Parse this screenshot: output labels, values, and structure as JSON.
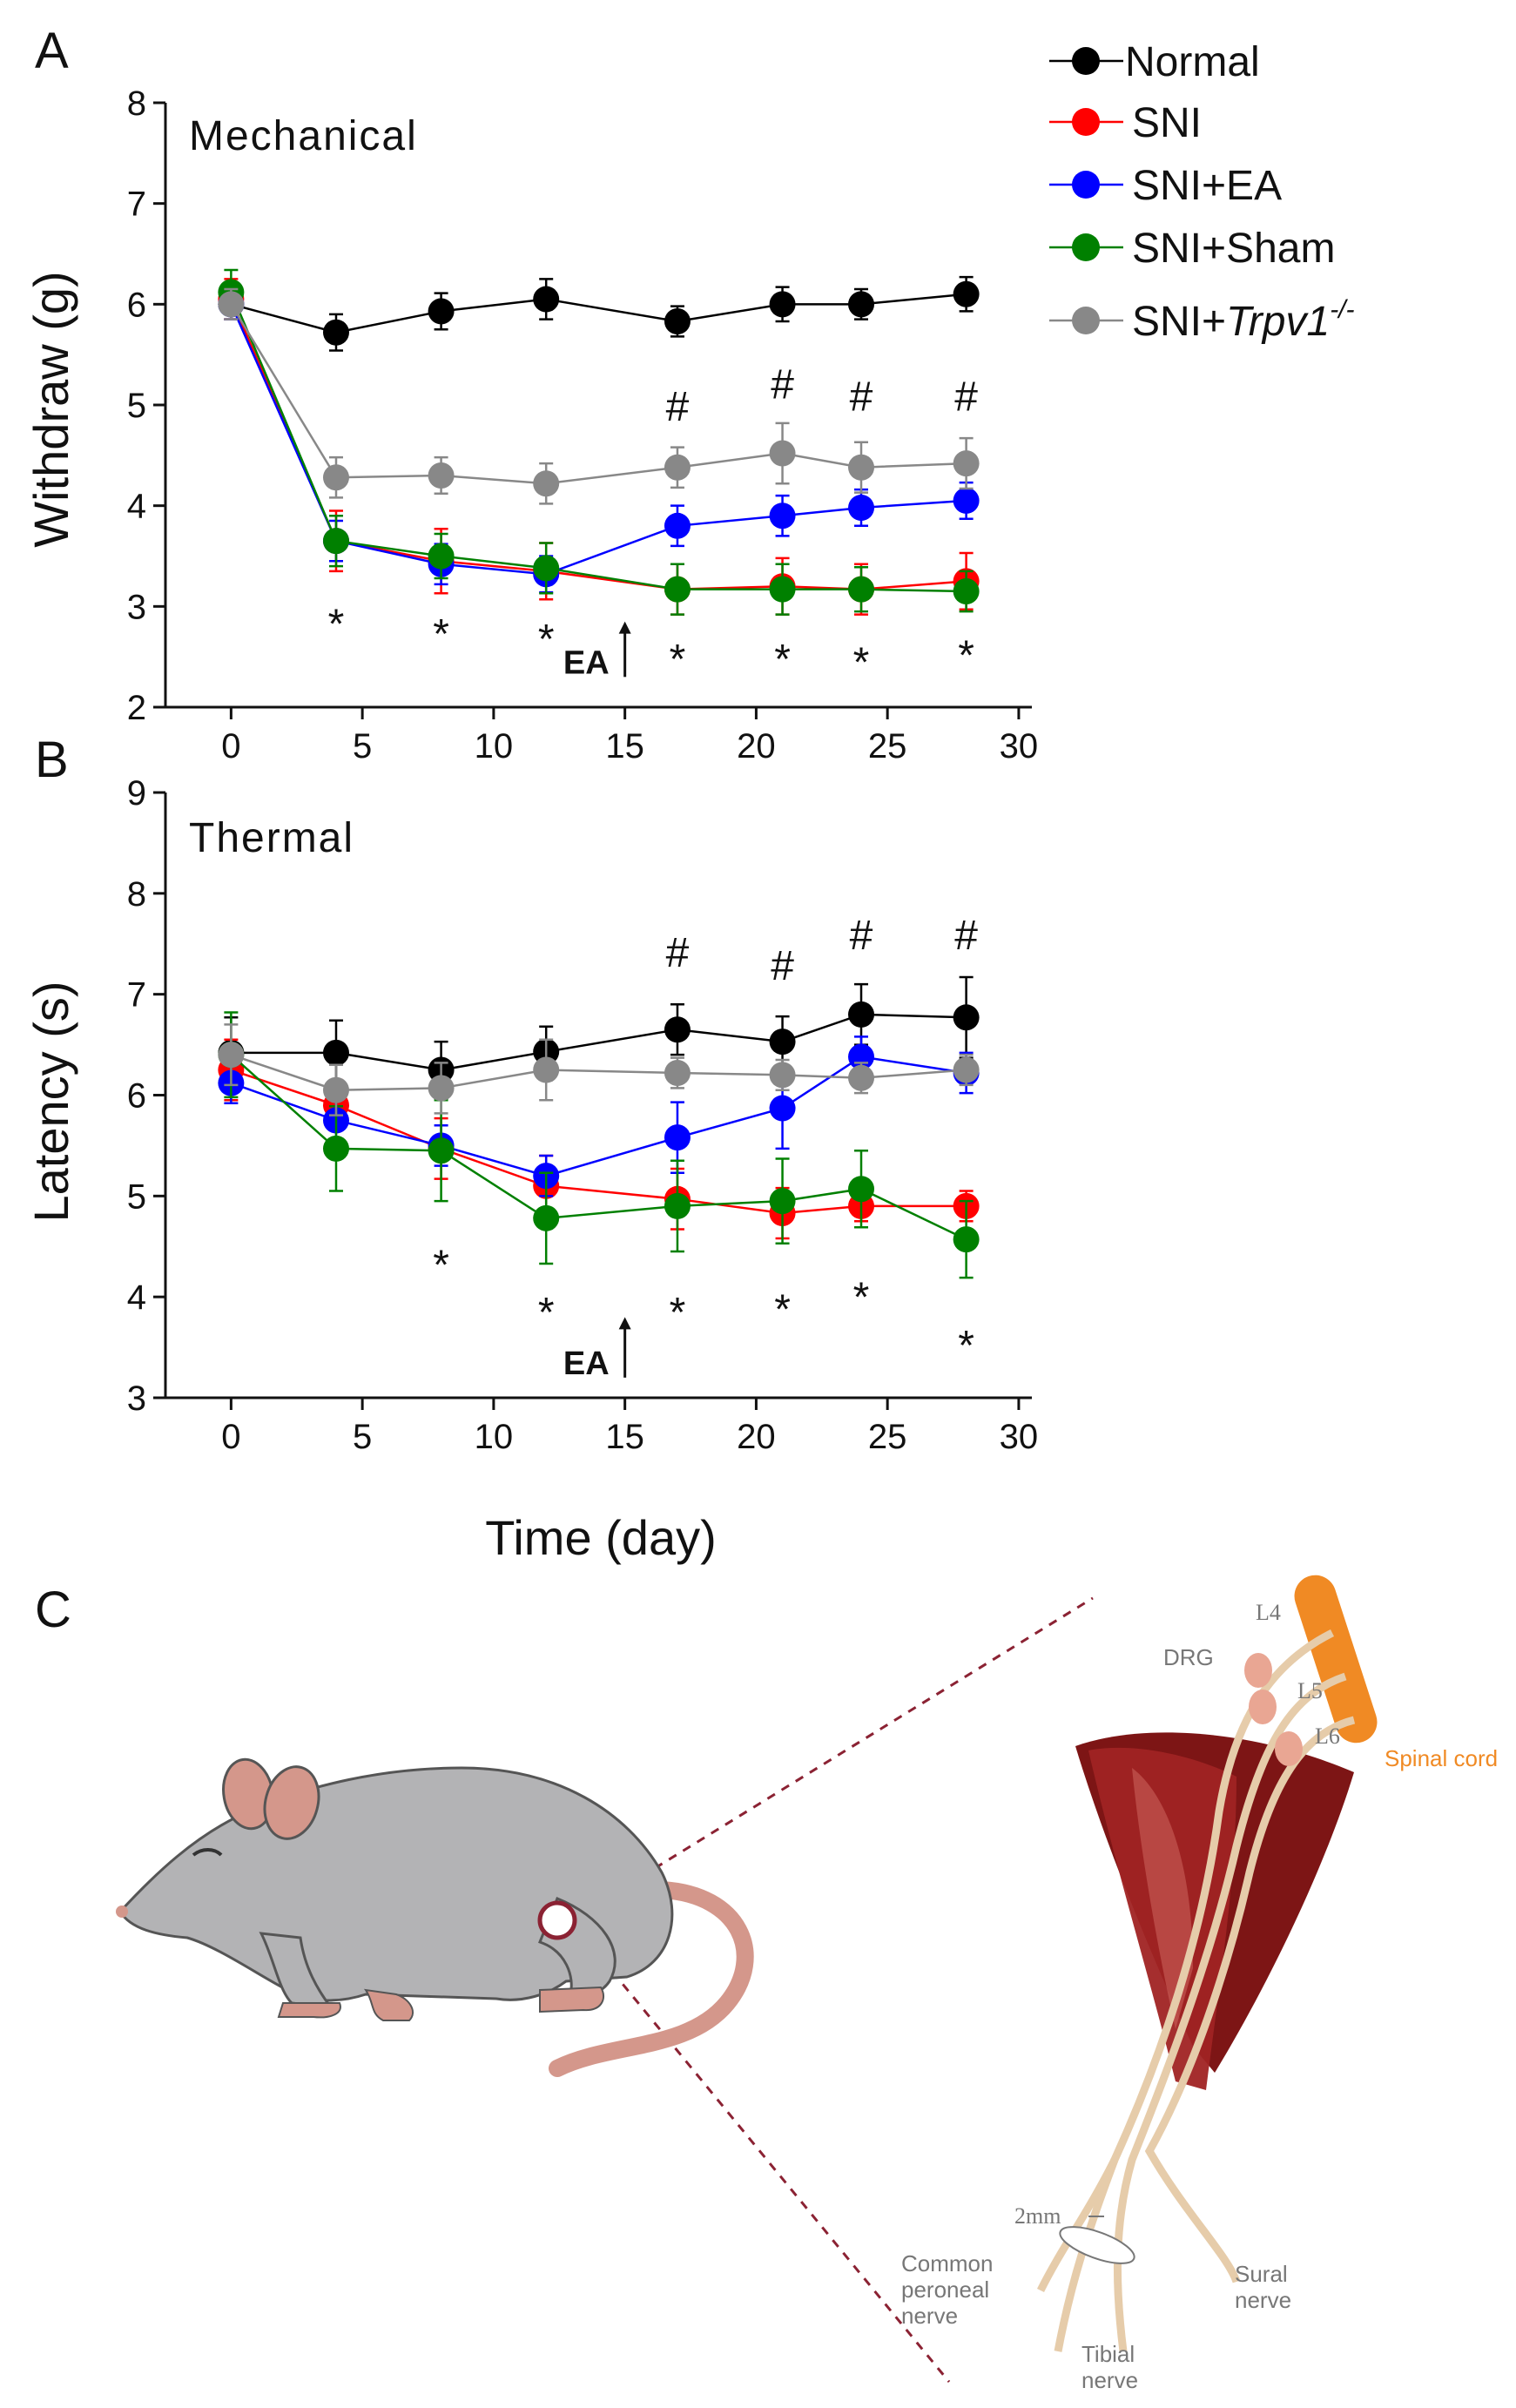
{
  "panels": {
    "a": "A",
    "b": "B",
    "c": "C"
  },
  "legend": [
    {
      "label": "Normal",
      "color": "#000000",
      "italic_suffix": "",
      "superscript": ""
    },
    {
      "label": "SNI",
      "color": "#ff0000",
      "italic_suffix": "",
      "superscript": ""
    },
    {
      "label": "SNI+EA",
      "color": "#0000ff",
      "italic_suffix": "",
      "superscript": ""
    },
    {
      "label": "SNI+Sham",
      "color": "#008000",
      "italic_suffix": "",
      "superscript": ""
    },
    {
      "label": "SNI+",
      "color": "#888888",
      "italic_suffix": "Trpv1",
      "superscript": "-/-"
    }
  ],
  "xlabel": "Time (day)",
  "ea_marker": "EA",
  "star": "*",
  "hash": "#",
  "chart_data": [
    {
      "type": "line",
      "subtitle": "Mechanical",
      "ylabel": "Withdraw (g)",
      "ylim": [
        2,
        8
      ],
      "xlim": [
        -2.5,
        30.5
      ],
      "xticks": [
        0,
        5,
        10,
        15,
        20,
        25,
        30
      ],
      "yticks": [
        2,
        3,
        4,
        5,
        6,
        7,
        8
      ],
      "x": [
        0,
        4,
        8,
        12,
        17,
        21,
        24,
        28
      ],
      "ea_day": 15,
      "series": [
        {
          "name": "Normal",
          "color": "#000000",
          "values": [
            6.0,
            5.72,
            5.93,
            6.05,
            5.83,
            6.0,
            6.0,
            6.1
          ],
          "err": [
            0.15,
            0.18,
            0.18,
            0.2,
            0.15,
            0.17,
            0.15,
            0.17
          ]
        },
        {
          "name": "SNI",
          "color": "#ff0000",
          "values": [
            6.05,
            3.65,
            3.45,
            3.35,
            3.17,
            3.2,
            3.17,
            3.25
          ],
          "err": [
            0.2,
            0.3,
            0.32,
            0.28,
            0.25,
            0.28,
            0.25,
            0.28
          ]
        },
        {
          "name": "SNI+EA",
          "color": "#0000ff",
          "values": [
            6.0,
            3.65,
            3.42,
            3.32,
            3.8,
            3.9,
            3.98,
            4.05
          ],
          "err": [
            0.15,
            0.2,
            0.2,
            0.18,
            0.2,
            0.2,
            0.18,
            0.18
          ]
        },
        {
          "name": "SNI+Sham",
          "color": "#008000",
          "values": [
            6.12,
            3.65,
            3.5,
            3.38,
            3.17,
            3.17,
            3.17,
            3.15
          ],
          "err": [
            0.22,
            0.25,
            0.22,
            0.25,
            0.25,
            0.25,
            0.22,
            0.2
          ]
        },
        {
          "name": "SNI+Trpv1-/-",
          "color": "#888888",
          "values": [
            6.0,
            4.28,
            4.3,
            4.22,
            4.38,
            4.52,
            4.38,
            4.42
          ],
          "err": [
            0.15,
            0.2,
            0.18,
            0.2,
            0.2,
            0.3,
            0.25,
            0.25
          ]
        }
      ],
      "star_marks": [
        {
          "x": 4,
          "y": 2.93
        },
        {
          "x": 8,
          "y": 2.83
        },
        {
          "x": 12,
          "y": 2.78
        },
        {
          "x": 17,
          "y": 2.58
        },
        {
          "x": 21,
          "y": 2.58
        },
        {
          "x": 24,
          "y": 2.55
        },
        {
          "x": 28,
          "y": 2.62
        }
      ],
      "hash_marks": [
        {
          "x": 17,
          "y": 5.0
        },
        {
          "x": 21,
          "y": 5.22
        },
        {
          "x": 24,
          "y": 5.1
        },
        {
          "x": 28,
          "y": 5.1
        }
      ],
      "ea_arrow": {
        "y_from": 2.3,
        "y_to": 2.85
      },
      "legend_position": "top-right"
    },
    {
      "type": "line",
      "subtitle": "Thermal",
      "ylabel": "Latency (s)",
      "ylim": [
        3,
        9
      ],
      "xlim": [
        -2.5,
        30.5
      ],
      "xticks": [
        0,
        5,
        10,
        15,
        20,
        25,
        30
      ],
      "yticks": [
        3,
        4,
        5,
        6,
        7,
        8,
        9
      ],
      "x": [
        0,
        4,
        8,
        12,
        17,
        21,
        24,
        28
      ],
      "ea_day": 15,
      "series": [
        {
          "name": "Normal",
          "color": "#000000",
          "values": [
            6.42,
            6.42,
            6.25,
            6.43,
            6.65,
            6.53,
            6.8,
            6.77
          ],
          "err": [
            0.35,
            0.32,
            0.28,
            0.25,
            0.25,
            0.25,
            0.3,
            0.4
          ]
        },
        {
          "name": "SNI",
          "color": "#ff0000",
          "values": [
            6.25,
            5.9,
            5.47,
            5.1,
            4.97,
            4.83,
            4.9,
            4.9
          ],
          "err": [
            0.3,
            0.25,
            0.3,
            0.3,
            0.3,
            0.25,
            0.15,
            0.15
          ]
        },
        {
          "name": "SNI+EA",
          "color": "#0000ff",
          "values": [
            6.12,
            5.75,
            5.5,
            5.2,
            5.58,
            5.87,
            6.38,
            6.22
          ],
          "err": [
            0.2,
            0.2,
            0.2,
            0.2,
            0.35,
            0.4,
            0.2,
            0.2
          ]
        },
        {
          "name": "SNI+Sham",
          "color": "#008000",
          "values": [
            6.4,
            5.47,
            5.45,
            4.78,
            4.9,
            4.95,
            5.07,
            4.57
          ],
          "err": [
            0.42,
            0.42,
            0.5,
            0.45,
            0.45,
            0.42,
            0.38,
            0.38
          ]
        },
        {
          "name": "SNI+Trpv1-/-",
          "color": "#888888",
          "values": [
            6.4,
            6.05,
            6.07,
            6.25,
            6.22,
            6.2,
            6.17,
            6.25
          ],
          "err": [
            0.3,
            0.25,
            0.25,
            0.3,
            0.15,
            0.15,
            0.15,
            0.15
          ]
        }
      ],
      "star_marks": [
        {
          "x": 8,
          "y": 4.42
        },
        {
          "x": 12,
          "y": 3.95
        },
        {
          "x": 17,
          "y": 3.95
        },
        {
          "x": 21,
          "y": 3.98
        },
        {
          "x": 24,
          "y": 4.1
        },
        {
          "x": 28,
          "y": 3.62
        }
      ],
      "hash_marks": [
        {
          "x": 17,
          "y": 7.43
        },
        {
          "x": 21,
          "y": 7.3
        },
        {
          "x": 24,
          "y": 7.6
        },
        {
          "x": 28,
          "y": 7.6
        }
      ],
      "ea_arrow": {
        "y_from": 3.2,
        "y_to": 3.8
      }
    }
  ],
  "illustration": {
    "labels": {
      "l4": "L4",
      "l5": "L5",
      "l6": "L6",
      "drg": "DRG",
      "spinal_cord": "Spinal cord",
      "two_mm": "2mm",
      "common_peroneal": [
        "Common",
        "peroneal",
        "nerve"
      ],
      "sural": [
        "Sural",
        "nerve"
      ],
      "tibial": [
        "Tibial",
        "nerve"
      ]
    },
    "colors": {
      "mouse_body": "#b3b3b5",
      "mouse_skin": "#d4978b",
      "muscle": "#8b1a1a",
      "nerve": "#e6ccaa",
      "spinal_cord": "#f08a24",
      "dashed_line": "#8b2233"
    }
  }
}
